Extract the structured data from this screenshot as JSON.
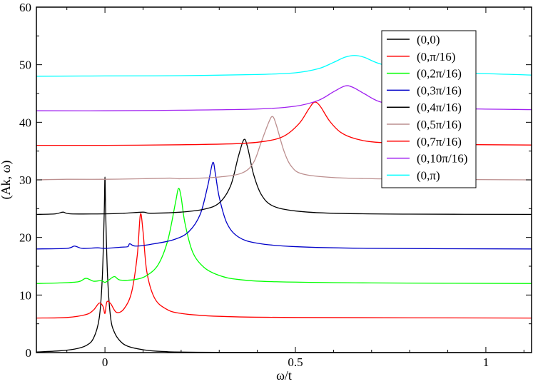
{
  "chart_data": {
    "type": "line",
    "title": "",
    "xlabel": "ω/t",
    "ylabel": "(Ak, ω)",
    "xlim": [
      -0.18,
      1.12
    ],
    "ylim": [
      0,
      60
    ],
    "xticks": [
      0,
      0.5,
      1
    ],
    "xtick_labels": [
      "0",
      "0.5",
      "1"
    ],
    "yticks": [
      0,
      10,
      20,
      30,
      40,
      50,
      60
    ],
    "ytick_labels": [
      "0",
      "10",
      "20",
      "30",
      "40",
      "50",
      "60"
    ],
    "grid": false,
    "legend_position": "top-right",
    "series": [
      {
        "name": "(0,0)",
        "color": "#000000",
        "points": [
          [
            -0.18,
            0.1
          ],
          [
            -0.12,
            0.3
          ],
          [
            -0.08,
            0.6
          ],
          [
            -0.05,
            1.2
          ],
          [
            -0.03,
            2.5
          ],
          [
            -0.015,
            6
          ],
          [
            -0.007,
            13
          ],
          [
            -0.002,
            24
          ],
          [
            0.0,
            30.5
          ],
          [
            0.002,
            24
          ],
          [
            0.007,
            13
          ],
          [
            0.015,
            6
          ],
          [
            0.025,
            3.5
          ],
          [
            0.04,
            2
          ],
          [
            0.06,
            1.1
          ],
          [
            0.1,
            0.5
          ],
          [
            0.15,
            0.2
          ],
          [
            0.3,
            0.05
          ],
          [
            1.12,
            0.0
          ]
        ]
      },
      {
        "name": "(0,π/16)",
        "color": "#ff0000",
        "points": [
          [
            -0.18,
            6
          ],
          [
            -0.1,
            6.1
          ],
          [
            -0.05,
            6.6
          ],
          [
            -0.03,
            7.4
          ],
          [
            -0.015,
            8.6
          ],
          [
            -0.005,
            8.0
          ],
          [
            0.0,
            6.8
          ],
          [
            0.005,
            8.8
          ],
          [
            0.015,
            8.5
          ],
          [
            0.03,
            7.0
          ],
          [
            0.05,
            7.6
          ],
          [
            0.07,
            10.5
          ],
          [
            0.085,
            17
          ],
          [
            0.093,
            24
          ],
          [
            0.1,
            21
          ],
          [
            0.11,
            14
          ],
          [
            0.13,
            9.5
          ],
          [
            0.16,
            7.6
          ],
          [
            0.2,
            6.8
          ],
          [
            0.3,
            6.3
          ],
          [
            0.5,
            6.1
          ],
          [
            1.12,
            6.0
          ]
        ]
      },
      {
        "name": "(0,2π/16)",
        "color": "#00ff00",
        "points": [
          [
            -0.18,
            12
          ],
          [
            -0.12,
            12.1
          ],
          [
            -0.07,
            12.3
          ],
          [
            -0.05,
            12.9
          ],
          [
            -0.03,
            12.4
          ],
          [
            -0.01,
            12.5
          ],
          [
            0.0,
            12.2
          ],
          [
            0.01,
            12.6
          ],
          [
            0.025,
            13.2
          ],
          [
            0.04,
            12.6
          ],
          [
            0.08,
            12.7
          ],
          [
            0.11,
            13.4
          ],
          [
            0.14,
            15.3
          ],
          [
            0.165,
            19.5
          ],
          [
            0.185,
            26
          ],
          [
            0.193,
            28.5
          ],
          [
            0.2,
            27
          ],
          [
            0.21,
            22.5
          ],
          [
            0.23,
            17.5
          ],
          [
            0.26,
            14.8
          ],
          [
            0.3,
            13.4
          ],
          [
            0.35,
            12.7
          ],
          [
            0.45,
            12.3
          ],
          [
            0.7,
            12.1
          ],
          [
            1.12,
            12.0
          ]
        ]
      },
      {
        "name": "(0,3π/16)",
        "color": "#0000c8",
        "points": [
          [
            -0.18,
            18
          ],
          [
            -0.1,
            18.1
          ],
          [
            -0.08,
            18.5
          ],
          [
            -0.06,
            18.1
          ],
          [
            -0.02,
            18.2
          ],
          [
            0.0,
            18.1
          ],
          [
            0.04,
            18.3
          ],
          [
            0.06,
            18.4
          ],
          [
            0.065,
            18.9
          ],
          [
            0.08,
            18.5
          ],
          [
            0.12,
            18.8
          ],
          [
            0.18,
            19.6
          ],
          [
            0.22,
            21
          ],
          [
            0.25,
            24
          ],
          [
            0.27,
            29
          ],
          [
            0.283,
            33
          ],
          [
            0.29,
            31
          ],
          [
            0.3,
            27
          ],
          [
            0.32,
            22.5
          ],
          [
            0.35,
            20.1
          ],
          [
            0.4,
            19
          ],
          [
            0.5,
            18.4
          ],
          [
            0.7,
            18.1
          ],
          [
            1.12,
            18.0
          ]
        ]
      },
      {
        "name": "(0,4π/16)",
        "color": "#000000",
        "points": [
          [
            -0.18,
            24
          ],
          [
            -0.13,
            24.1
          ],
          [
            -0.11,
            24.4
          ],
          [
            -0.09,
            24.1
          ],
          [
            0.0,
            24.1
          ],
          [
            0.05,
            24.2
          ],
          [
            0.1,
            24.4
          ],
          [
            0.12,
            24.2
          ],
          [
            0.2,
            24.4
          ],
          [
            0.26,
            24.9
          ],
          [
            0.3,
            26
          ],
          [
            0.33,
            29
          ],
          [
            0.35,
            34
          ],
          [
            0.365,
            37
          ],
          [
            0.375,
            35.5
          ],
          [
            0.39,
            31
          ],
          [
            0.41,
            27.5
          ],
          [
            0.44,
            25.5
          ],
          [
            0.5,
            24.6
          ],
          [
            0.6,
            24.2
          ],
          [
            0.8,
            24.05
          ],
          [
            1.12,
            24.0
          ]
        ]
      },
      {
        "name": "(0,5π/16)",
        "color": "#bc8f8f",
        "points": [
          [
            -0.18,
            30
          ],
          [
            -0.1,
            30.1
          ],
          [
            0.0,
            30.1
          ],
          [
            0.1,
            30.2
          ],
          [
            0.17,
            30.3
          ],
          [
            0.2,
            30.2
          ],
          [
            0.3,
            30.5
          ],
          [
            0.36,
            31.2
          ],
          [
            0.39,
            33
          ],
          [
            0.41,
            36.5
          ],
          [
            0.43,
            40
          ],
          [
            0.44,
            41
          ],
          [
            0.45,
            39.5
          ],
          [
            0.47,
            35
          ],
          [
            0.49,
            32.3
          ],
          [
            0.52,
            31
          ],
          [
            0.6,
            30.4
          ],
          [
            0.75,
            30.15
          ],
          [
            1.12,
            30.0
          ]
        ]
      },
      {
        "name": "(0,7π/16)",
        "color": "#ff0000",
        "points": [
          [
            -0.18,
            36
          ],
          [
            0.0,
            36
          ],
          [
            0.2,
            36.1
          ],
          [
            0.35,
            36.3
          ],
          [
            0.42,
            36.7
          ],
          [
            0.47,
            37.6
          ],
          [
            0.51,
            39.8
          ],
          [
            0.535,
            42.3
          ],
          [
            0.55,
            43.5
          ],
          [
            0.565,
            42.8
          ],
          [
            0.59,
            40.2
          ],
          [
            0.62,
            38.2
          ],
          [
            0.66,
            37.1
          ],
          [
            0.72,
            36.5
          ],
          [
            0.85,
            36.2
          ],
          [
            1.12,
            36.05
          ]
        ]
      },
      {
        "name": "(0,10π/16)",
        "color": "#a020f0",
        "points": [
          [
            -0.18,
            42
          ],
          [
            0.0,
            42
          ],
          [
            0.2,
            42.1
          ],
          [
            0.4,
            42.3
          ],
          [
            0.5,
            42.8
          ],
          [
            0.56,
            43.8
          ],
          [
            0.6,
            45.3
          ],
          [
            0.63,
            46.3
          ],
          [
            0.65,
            46.1
          ],
          [
            0.68,
            45
          ],
          [
            0.72,
            43.6
          ],
          [
            0.78,
            42.8
          ],
          [
            0.9,
            42.4
          ],
          [
            1.12,
            42.2
          ]
        ]
      },
      {
        "name": "(0,π)",
        "color": "#00ffff",
        "points": [
          [
            -0.18,
            48
          ],
          [
            0.0,
            48.05
          ],
          [
            0.2,
            48.1
          ],
          [
            0.4,
            48.3
          ],
          [
            0.5,
            48.6
          ],
          [
            0.56,
            49.3
          ],
          [
            0.6,
            50.4
          ],
          [
            0.63,
            51.3
          ],
          [
            0.655,
            51.6
          ],
          [
            0.68,
            51.3
          ],
          [
            0.72,
            50.2
          ],
          [
            0.78,
            49.3
          ],
          [
            0.9,
            48.7
          ],
          [
            1.12,
            48.2
          ]
        ]
      }
    ]
  }
}
